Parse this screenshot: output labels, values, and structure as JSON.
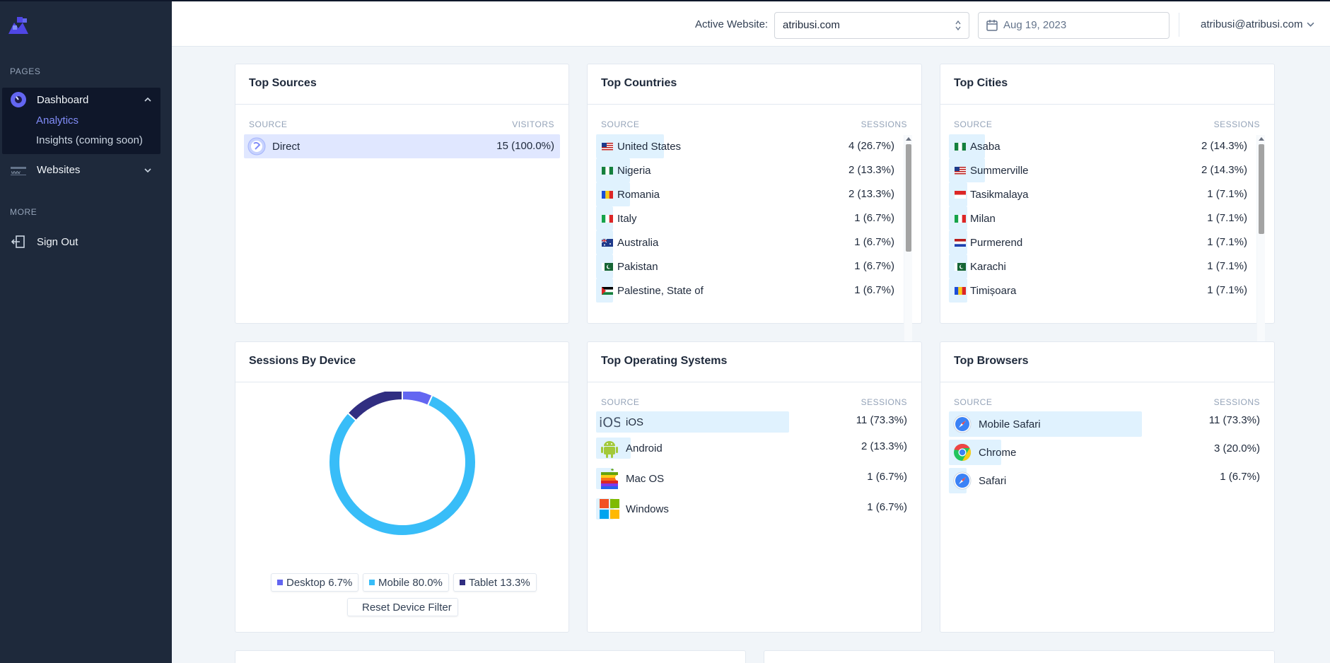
{
  "sidebar": {
    "pages_heading": "PAGES",
    "dashboard_label": "Dashboard",
    "analytics_label": "Analytics",
    "insights_label": "Insights (coming soon)",
    "websites_label": "Websites",
    "more_heading": "MORE",
    "signout_label": "Sign Out"
  },
  "header": {
    "active_label": "Active Website:",
    "website_value": "atribusi.com",
    "date_value": "Aug 19, 2023",
    "user_email": "atribusi@atribusi.com"
  },
  "colors": {
    "accent": "#6366f1",
    "bar": "#e0f2fe",
    "desktop": "#6366f1",
    "mobile": "#38bdf8",
    "tablet": "#312e81"
  },
  "top_sources": {
    "title": "Top Sources",
    "col_source": "SOURCE",
    "col_visitors": "VISITORS",
    "rows": [
      {
        "label": "Direct",
        "value": "15 (100.0%)",
        "icon": "globe-icon"
      }
    ]
  },
  "top_countries": {
    "title": "Top Countries",
    "col_source": "SOURCE",
    "col_sessions": "SESSIONS",
    "rows": [
      {
        "label": "United States",
        "value": "4 (26.7%)",
        "flag": "us",
        "pct": 0.267
      },
      {
        "label": "Nigeria",
        "value": "2 (13.3%)",
        "flag": "ng",
        "pct": 0.133
      },
      {
        "label": "Romania",
        "value": "2 (13.3%)",
        "flag": "ro",
        "pct": 0.133
      },
      {
        "label": "Italy",
        "value": "1 (6.7%)",
        "flag": "it",
        "pct": 0.067
      },
      {
        "label": "Australia",
        "value": "1 (6.7%)",
        "flag": "au",
        "pct": 0.067
      },
      {
        "label": "Pakistan",
        "value": "1 (6.7%)",
        "flag": "pk",
        "pct": 0.067
      },
      {
        "label": "Palestine, State of",
        "value": "1 (6.7%)",
        "flag": "ps",
        "pct": 0.067
      }
    ]
  },
  "top_cities": {
    "title": "Top Cities",
    "col_source": "SOURCE",
    "col_sessions": "SESSIONS",
    "rows": [
      {
        "label": "Asaba",
        "value": "2 (14.3%)",
        "flag": "ng",
        "pct": 0.143
      },
      {
        "label": "Summerville",
        "value": "2 (14.3%)",
        "flag": "us",
        "pct": 0.143
      },
      {
        "label": "Tasikmalaya",
        "value": "1 (7.1%)",
        "flag": "id",
        "pct": 0.071
      },
      {
        "label": "Milan",
        "value": "1 (7.1%)",
        "flag": "it",
        "pct": 0.071
      },
      {
        "label": "Purmerend",
        "value": "1 (7.1%)",
        "flag": "nl",
        "pct": 0.071
      },
      {
        "label": "Karachi",
        "value": "1 (7.1%)",
        "flag": "pk",
        "pct": 0.071
      },
      {
        "label": "Timișoara",
        "value": "1 (7.1%)",
        "flag": "ro",
        "pct": 0.071
      }
    ]
  },
  "sessions_by_device": {
    "title": "Sessions By Device",
    "legend": [
      {
        "label": "Desktop 6.7%",
        "color": "#6366f1"
      },
      {
        "label": "Mobile 80.0%",
        "color": "#38bdf8"
      },
      {
        "label": "Tablet 13.3%",
        "color": "#312e81"
      }
    ],
    "reset_label": "Reset Device Filter"
  },
  "chart_data": {
    "type": "pie",
    "categories": [
      "Desktop",
      "Mobile",
      "Tablet"
    ],
    "values": [
      6.7,
      80.0,
      13.3
    ],
    "colors": [
      "#6366f1",
      "#38bdf8",
      "#312e81"
    ],
    "legend": "bottom"
  },
  "top_os": {
    "title": "Top Operating Systems",
    "col_source": "SOURCE",
    "col_sessions": "SESSIONS",
    "rows": [
      {
        "label": "iOS",
        "value": "11 (73.3%)",
        "icon": "ios-icon",
        "pct": 0.733
      },
      {
        "label": "Android",
        "value": "2 (13.3%)",
        "icon": "android-icon",
        "pct": 0.133
      },
      {
        "label": "Mac OS",
        "value": "1 (6.7%)",
        "icon": "apple-icon",
        "pct": 0.067
      },
      {
        "label": "Windows",
        "value": "1 (6.7%)",
        "icon": "windows-icon",
        "pct": 0.067
      }
    ]
  },
  "top_browsers": {
    "title": "Top Browsers",
    "col_source": "SOURCE",
    "col_sessions": "SESSIONS",
    "rows": [
      {
        "label": "Mobile Safari",
        "value": "11 (73.3%)",
        "icon": "safari-icon",
        "pct": 0.733
      },
      {
        "label": "Chrome",
        "value": "3 (20.0%)",
        "icon": "chrome-icon",
        "pct": 0.2
      },
      {
        "label": "Safari",
        "value": "1 (6.7%)",
        "icon": "safari-icon",
        "pct": 0.067
      }
    ]
  }
}
